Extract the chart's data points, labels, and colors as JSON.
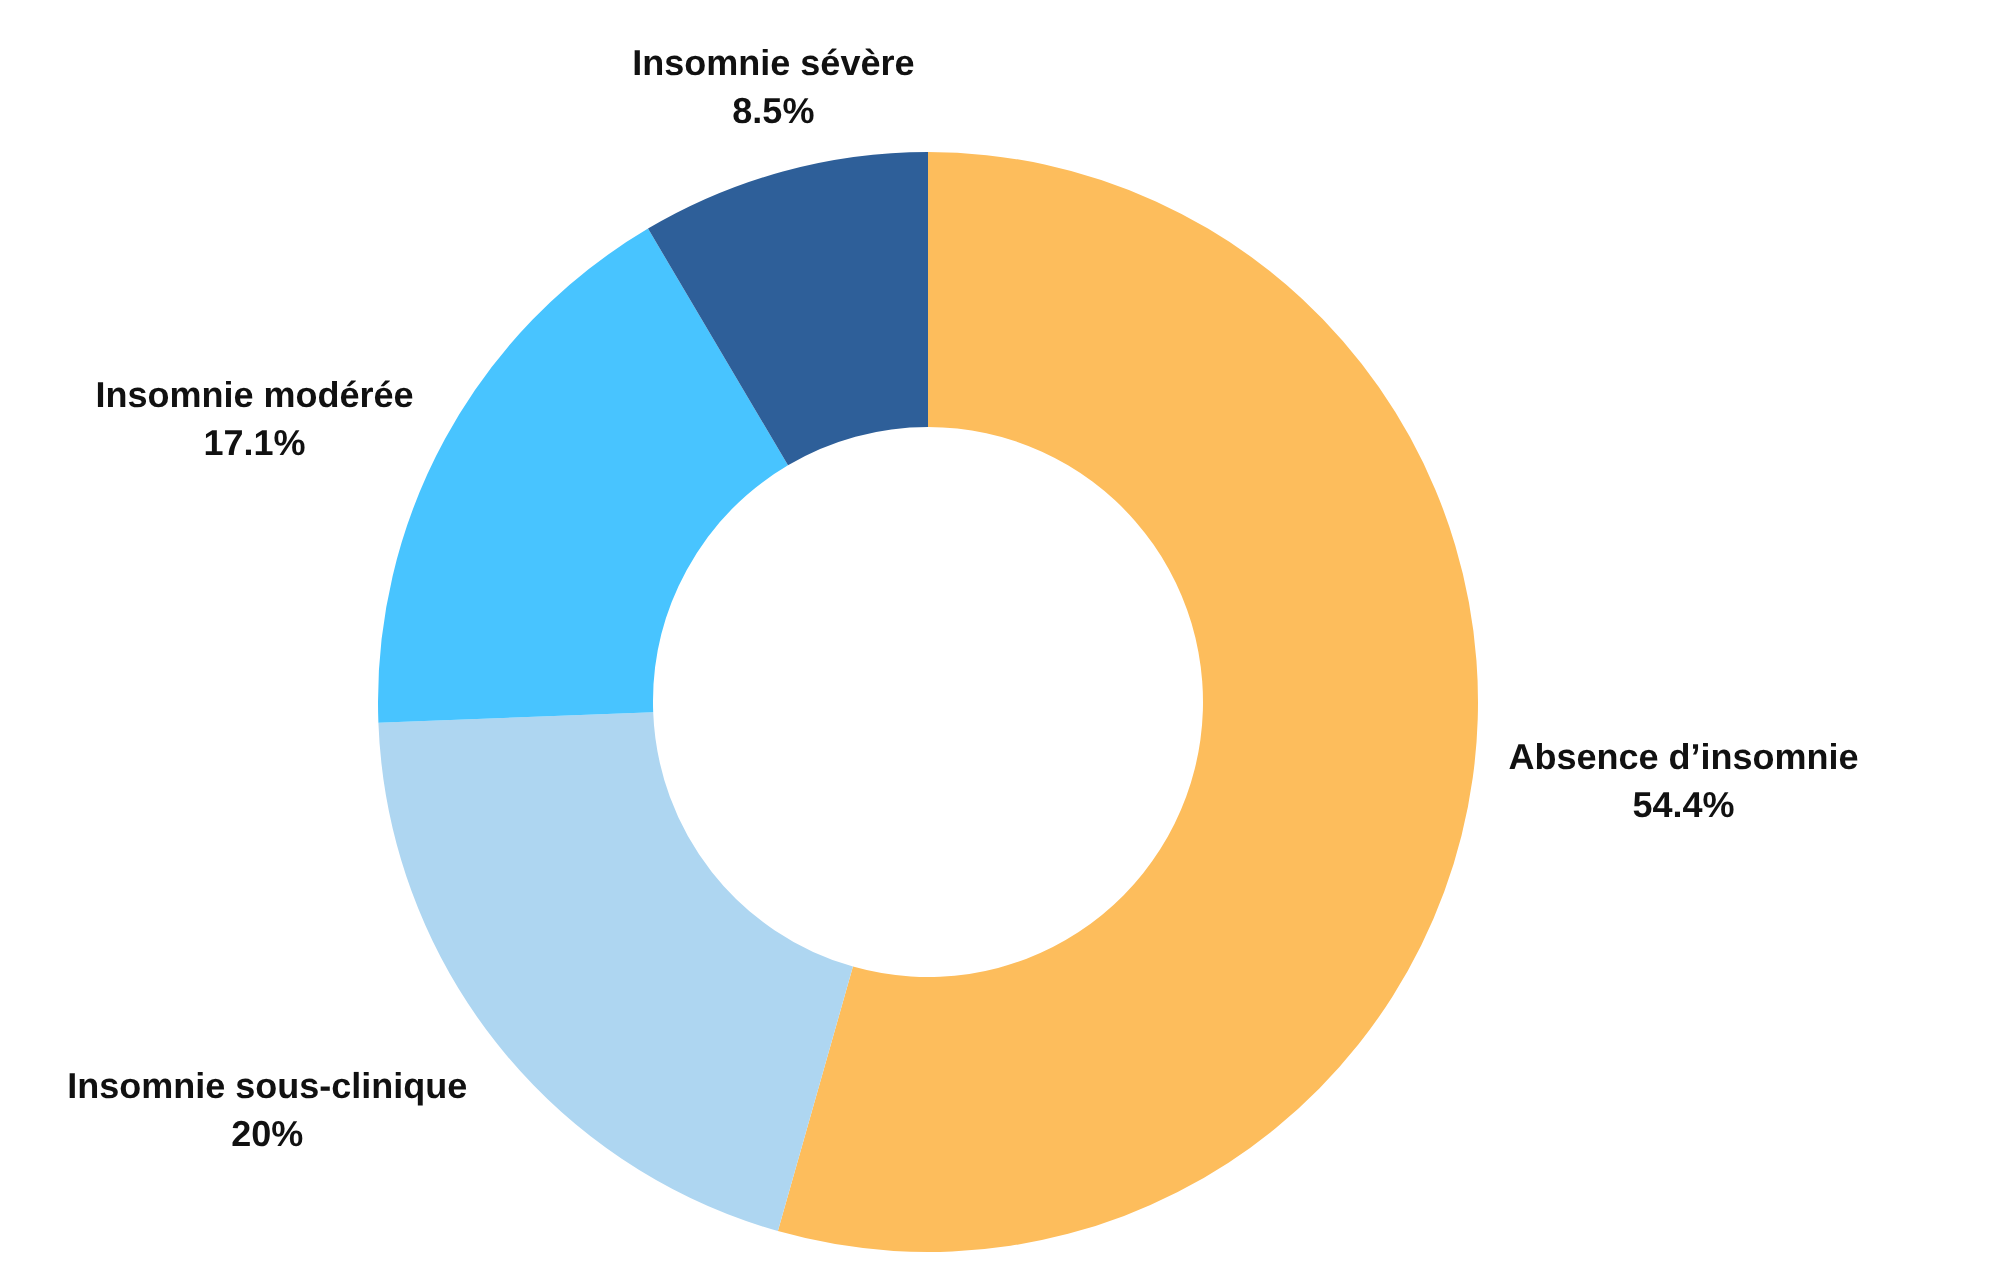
{
  "chart_data": {
    "type": "donut",
    "categories": [
      "Absence d’insomnie",
      "Insomnie sous-clinique",
      "Insomnie modérée",
      "Insomnie sévère"
    ],
    "values": [
      54.4,
      20,
      17.1,
      8.5
    ],
    "colors": [
      "#fdbd5c",
      "#aed6f1",
      "#48c4ff",
      "#2e5f99"
    ],
    "value_labels": [
      "54.4%",
      "20%",
      "17.1%",
      "8.5%"
    ],
    "legend": false
  }
}
